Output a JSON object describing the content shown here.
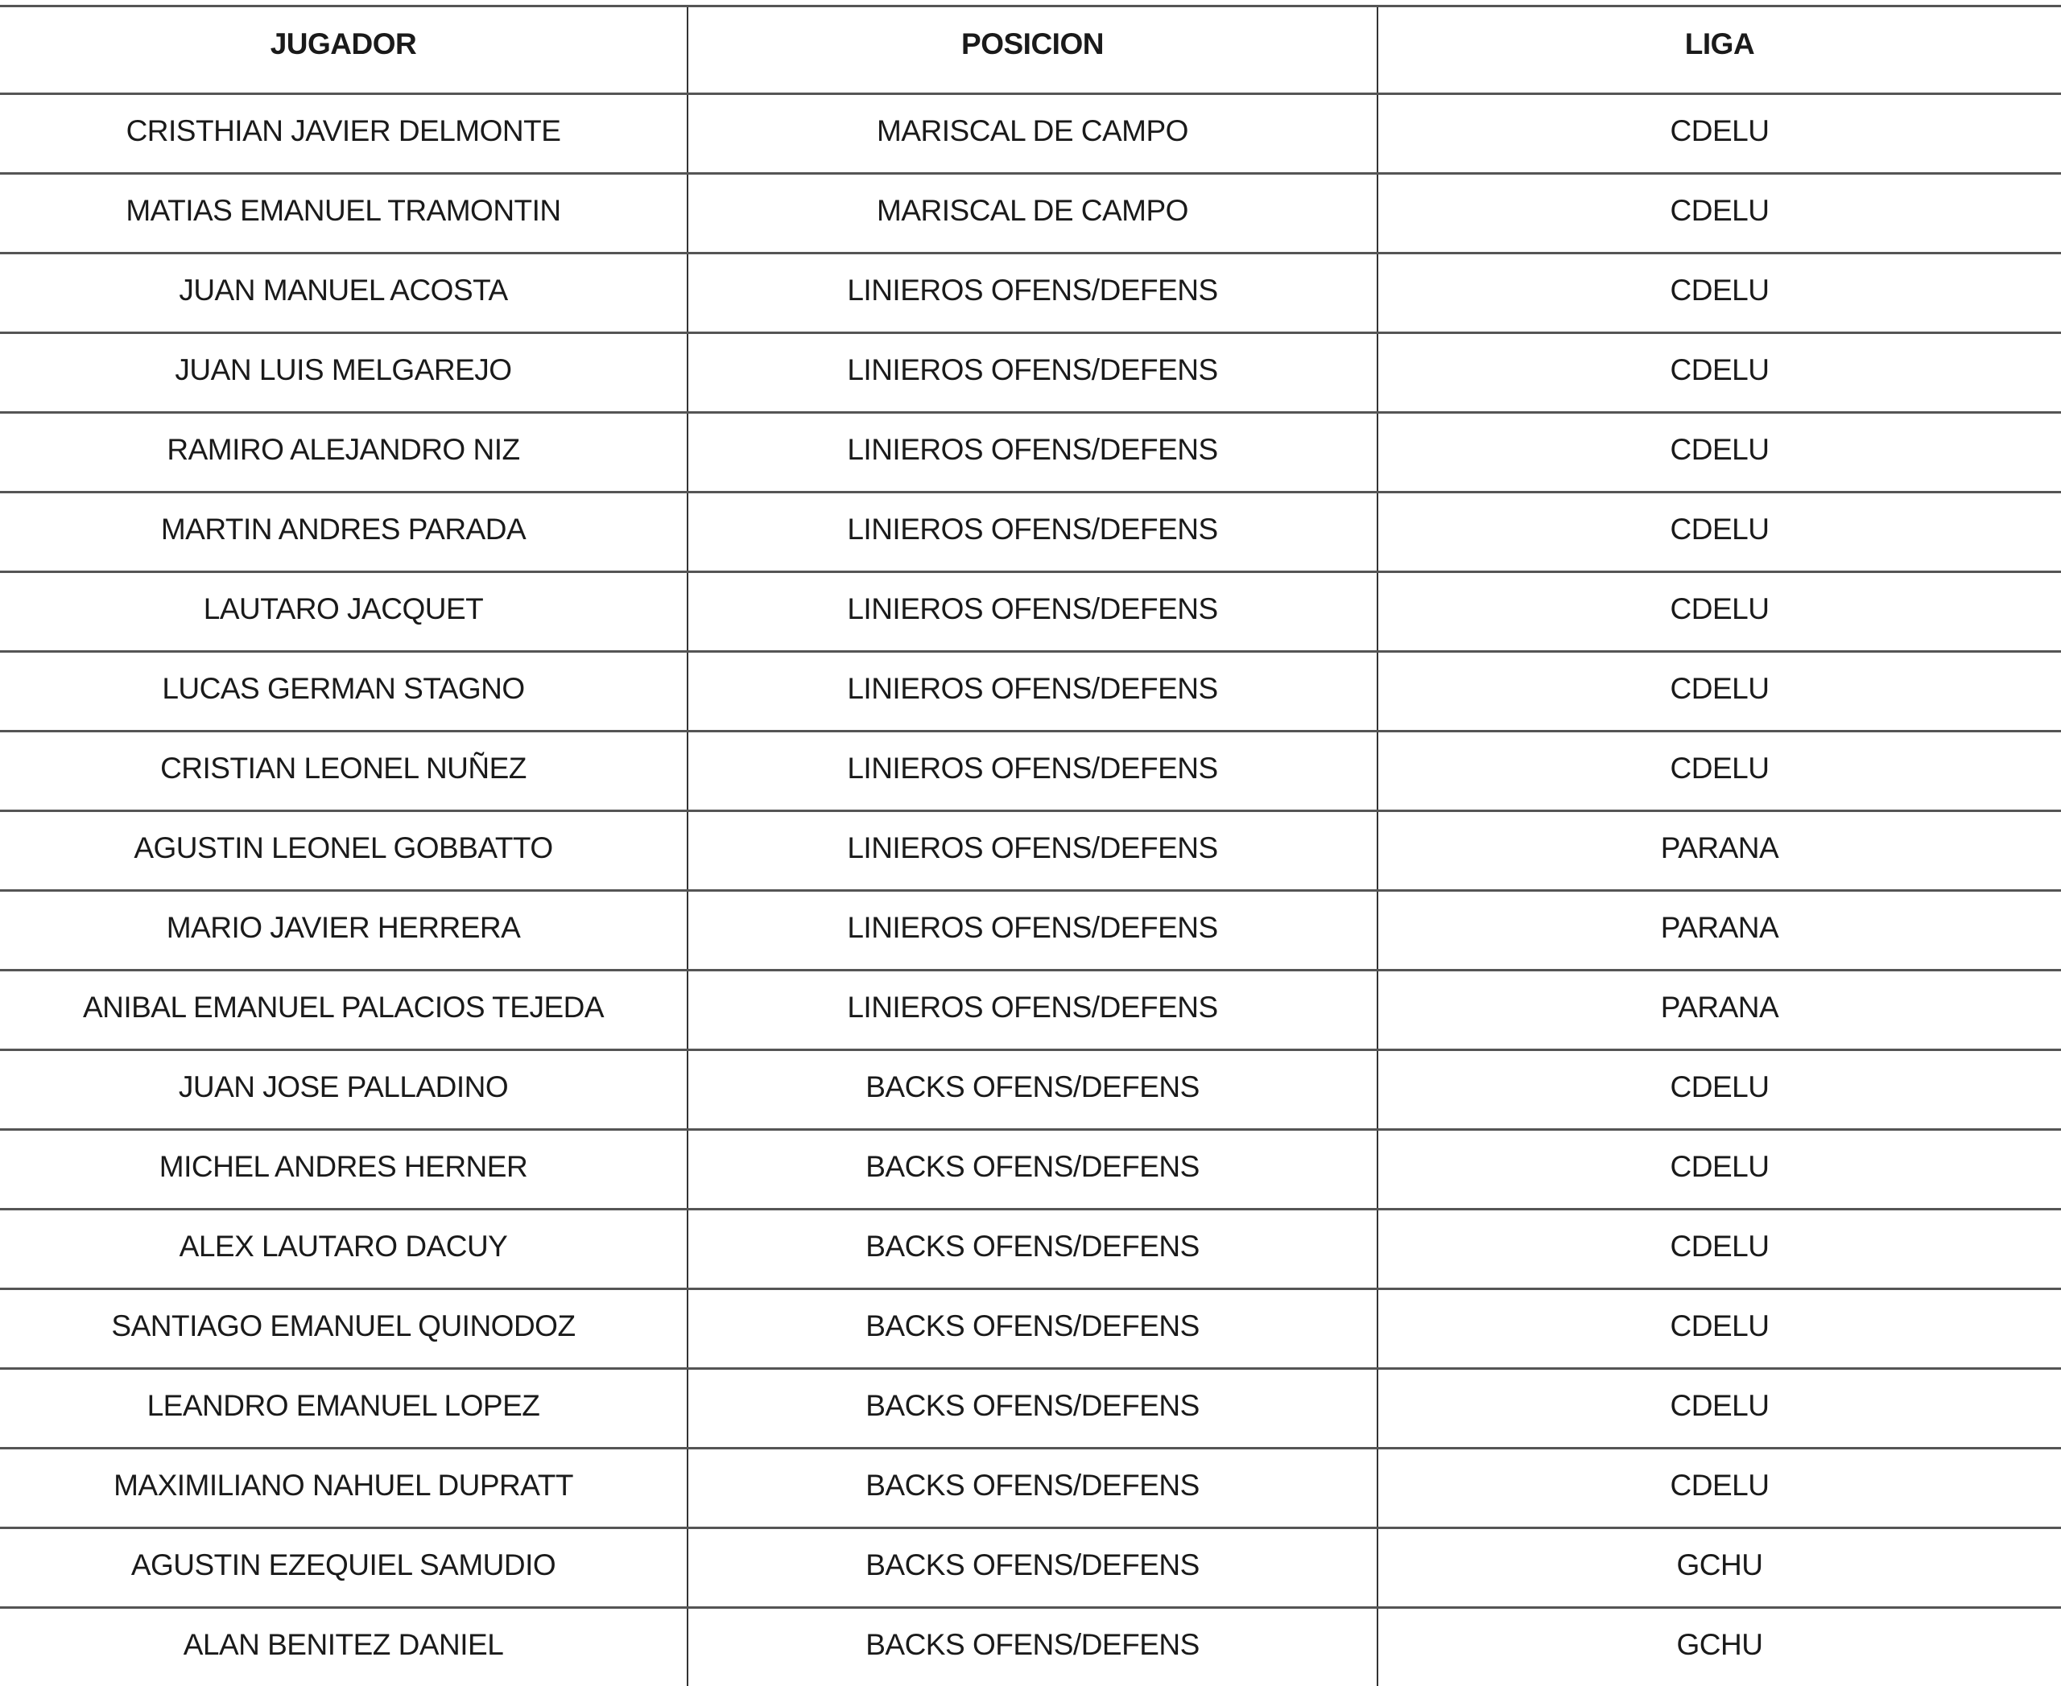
{
  "table": {
    "headers": [
      "JUGADOR",
      "POSICION",
      "LIGA"
    ],
    "rows": [
      [
        "CRISTHIAN  JAVIER DELMONTE",
        "MARISCAL DE CAMPO",
        "CDELU"
      ],
      [
        "MATIAS EMANUEL TRAMONTIN",
        "MARISCAL DE CAMPO",
        "CDELU"
      ],
      [
        "JUAN MANUEL ACOSTA",
        "LINIEROS OFENS/DEFENS",
        "CDELU"
      ],
      [
        "JUAN LUIS MELGAREJO",
        "LINIEROS OFENS/DEFENS",
        "CDELU"
      ],
      [
        "RAMIRO ALEJANDRO NIZ",
        "LINIEROS OFENS/DEFENS",
        "CDELU"
      ],
      [
        "MARTIN ANDRES PARADA",
        "LINIEROS OFENS/DEFENS",
        "CDELU"
      ],
      [
        "LAUTARO JACQUET",
        "LINIEROS OFENS/DEFENS",
        "CDELU"
      ],
      [
        "LUCAS GERMAN STAGNO",
        "LINIEROS OFENS/DEFENS",
        "CDELU"
      ],
      [
        "CRISTIAN LEONEL NUÑEZ",
        "LINIEROS OFENS/DEFENS",
        "CDELU"
      ],
      [
        "AGUSTIN LEONEL GOBBATTO",
        "LINIEROS OFENS/DEFENS",
        "PARANA"
      ],
      [
        "MARIO JAVIER HERRERA",
        "LINIEROS OFENS/DEFENS",
        "PARANA"
      ],
      [
        "ANIBAL EMANUEL PALACIOS TEJEDA",
        "LINIEROS OFENS/DEFENS",
        "PARANA"
      ],
      [
        "JUAN JOSE PALLADINO",
        "BACKS OFENS/DEFENS",
        "CDELU"
      ],
      [
        "MICHEL ANDRES HERNER",
        "BACKS OFENS/DEFENS",
        "CDELU"
      ],
      [
        "ALEX LAUTARO DACUY",
        "BACKS OFENS/DEFENS",
        "CDELU"
      ],
      [
        "SANTIAGO EMANUEL QUINODOZ",
        "BACKS OFENS/DEFENS",
        "CDELU"
      ],
      [
        "LEANDRO EMANUEL LOPEZ",
        "BACKS OFENS/DEFENS",
        "CDELU"
      ],
      [
        "MAXIMILIANO NAHUEL DUPRATT",
        "BACKS OFENS/DEFENS",
        "CDELU"
      ],
      [
        "AGUSTIN EZEQUIEL SAMUDIO",
        "BACKS OFENS/DEFENS",
        "GCHU"
      ],
      [
        "ALAN BENITEZ DANIEL",
        "BACKS OFENS/DEFENS",
        "GCHU"
      ]
    ]
  }
}
